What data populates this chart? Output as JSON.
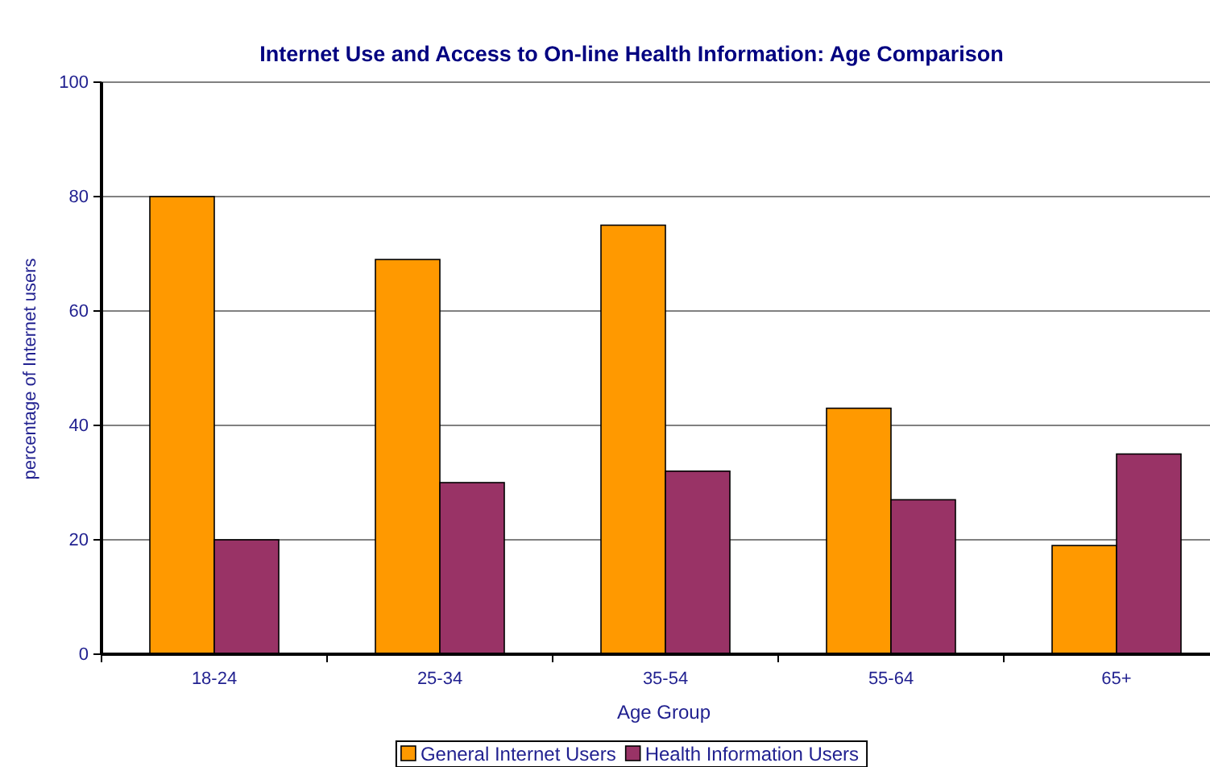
{
  "chart_data": {
    "type": "bar",
    "title": "Internet Use and Access to On-line Health Information: Age Comparison",
    "xlabel": "Age Group",
    "ylabel": "percentage of Internet users",
    "categories": [
      "18-24",
      "25-34",
      "35-54",
      "55-64",
      "65+"
    ],
    "series": [
      {
        "name": "General Internet Users",
        "color": "#ff9900",
        "values": [
          80,
          69,
          75,
          43,
          19
        ]
      },
      {
        "name": "Health Information Users",
        "color": "#993366",
        "values": [
          20,
          30,
          32,
          27,
          35
        ]
      }
    ],
    "ylim": [
      0,
      100
    ],
    "yticks": [
      0,
      20,
      40,
      60,
      80,
      100
    ],
    "grid": "y",
    "legend": "bottom"
  }
}
